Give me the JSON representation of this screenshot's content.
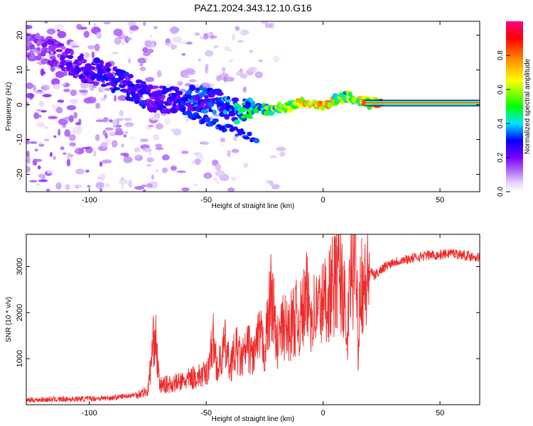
{
  "title": "PAZ1.2024.343.12.10.G16",
  "chart_data": [
    {
      "type": "heatmap",
      "xlabel": "Height of straight line (km)",
      "ylabel": "Frequency (Hz)",
      "xlim": [
        -127,
        67
      ],
      "ylim": [
        -25,
        24
      ],
      "xticks": [
        -100,
        -50,
        0,
        50
      ],
      "yticks": [
        20,
        10,
        0,
        -10,
        -20
      ],
      "colorbar": {
        "label": "Normalized spectral amplitude",
        "range": [
          0,
          1
        ],
        "ticks": [
          0.0,
          0.2,
          0.4,
          0.6,
          0.8
        ],
        "colors": [
          "#ffffff",
          "#c9a6ef",
          "#7b00ff",
          "#0000ff",
          "#00e5ff",
          "#00ff00",
          "#ffff00",
          "#ff8800",
          "#ff0000",
          "#ff0088"
        ]
      },
      "ridge": {
        "x": [
          -125,
          -115,
          -105,
          -95,
          -85,
          -75,
          -65,
          -55,
          -45,
          -38,
          -30,
          -20,
          -10,
          0,
          5,
          10,
          15,
          20,
          30,
          45,
          67
        ],
        "y": [
          17,
          15,
          11,
          9,
          6,
          2,
          1.5,
          2,
          0.5,
          -2,
          -1,
          -1.5,
          0.5,
          0,
          1.5,
          2.5,
          1.5,
          0.5,
          0.5,
          0.5,
          0.5
        ],
        "amplitude": [
          0.15,
          0.2,
          0.25,
          0.3,
          0.3,
          0.3,
          0.3,
          0.35,
          0.35,
          0.4,
          0.5,
          0.6,
          0.7,
          0.85,
          0.7,
          0.6,
          0.7,
          0.85,
          0.9,
          0.95,
          0.95
        ]
      }
    },
    {
      "type": "line",
      "xlabel": "Height of straight line (km)",
      "ylabel": "SNR (10 * v/v)",
      "xlim": [
        -127,
        67
      ],
      "ylim": [
        0,
        3700
      ],
      "xticks": [
        -100,
        -50,
        0,
        50
      ],
      "yticks": [
        1000,
        2000,
        3000
      ],
      "color": "#ee2b2b",
      "series": [
        {
          "x": [
            -127,
            -120,
            -110,
            -100,
            -90,
            -80,
            -75,
            -72,
            -70,
            -65,
            -60,
            -55,
            -50,
            -47,
            -45,
            -42,
            -40,
            -37,
            -35,
            -32,
            -30,
            -27,
            -25,
            -22,
            -20,
            -17,
            -15,
            -12,
            -10,
            -7,
            -5,
            -2,
            0,
            2,
            5,
            7,
            9,
            10,
            12,
            13,
            14,
            15,
            16,
            18,
            20,
            22,
            25,
            30,
            35,
            40,
            45,
            50,
            55,
            60,
            67
          ],
          "y": [
            100,
            110,
            120,
            130,
            150,
            220,
            300,
            1620,
            420,
            450,
            500,
            600,
            650,
            1400,
            750,
            1300,
            850,
            1200,
            950,
            1250,
            1050,
            1500,
            1150,
            2500,
            1300,
            1700,
            1600,
            1900,
            1800,
            2300,
            2000,
            2100,
            2200,
            2400,
            2600,
            2900,
            2400,
            1200,
            3000,
            2700,
            3700,
            1250,
            2800,
            2500,
            2900,
            2800,
            2950,
            3100,
            3150,
            3200,
            3250,
            3250,
            3300,
            3250,
            3200
          ]
        }
      ]
    }
  ]
}
